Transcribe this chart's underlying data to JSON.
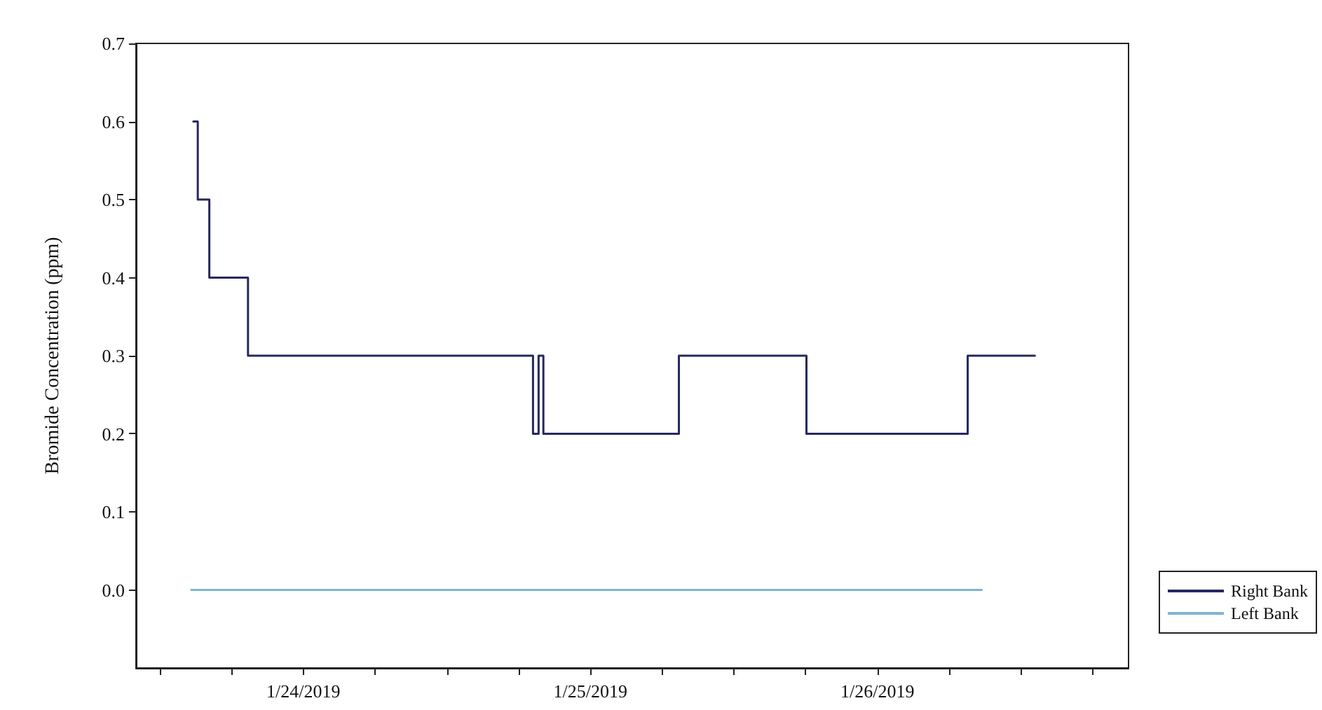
{
  "chart_data": {
    "type": "step",
    "ylabel": "Bromide Concentration (ppm)",
    "xlim": [
      "2019-01-23T10:00",
      "2019-01-26T21:00"
    ],
    "xticks": [
      {
        "value": "2019-01-23T12:00",
        "label": null
      },
      {
        "value": "2019-01-23T18:00",
        "label": null
      },
      {
        "value": "2019-01-24T00:00",
        "label": "1/24/2019"
      },
      {
        "value": "2019-01-24T06:00",
        "label": null
      },
      {
        "value": "2019-01-24T12:00",
        "label": null
      },
      {
        "value": "2019-01-24T18:00",
        "label": null
      },
      {
        "value": "2019-01-25T00:00",
        "label": "1/25/2019"
      },
      {
        "value": "2019-01-25T06:00",
        "label": null
      },
      {
        "value": "2019-01-25T12:00",
        "label": null
      },
      {
        "value": "2019-01-25T18:00",
        "label": null
      },
      {
        "value": "2019-01-26T00:00",
        "label": "1/26/2019"
      },
      {
        "value": "2019-01-26T06:00",
        "label": null
      },
      {
        "value": "2019-01-26T12:00",
        "label": null
      },
      {
        "value": "2019-01-26T18:00",
        "label": null
      }
    ],
    "ylim": [
      -0.1,
      0.7
    ],
    "yticks": [
      {
        "value": 0,
        "label": "0.0"
      },
      0.1,
      0.2,
      0.3,
      0.4,
      0.5,
      0.6,
      0.7
    ],
    "grid": false,
    "legend": "bottom right",
    "marker": "none",
    "line_style": "solid",
    "series": [
      {
        "name": "Right Bank",
        "color": "#27285e",
        "x": [
          "2019-01-23T14:48",
          "2019-01-23T15:10",
          "2019-01-23T16:08",
          "2019-01-23T19:22",
          "2019-01-24T19:12",
          "2019-01-24T19:40",
          "2019-01-24T20:04",
          "2019-01-25T07:24",
          "2019-01-25T18:04",
          "2019-01-26T07:33",
          "2019-01-26T13:10"
        ],
        "values": [
          0.6,
          0.5,
          0.4,
          0.3,
          0.2,
          0.3,
          0.2,
          0.3,
          0.2,
          0.3,
          0.3
        ]
      },
      {
        "name": "Left Bank",
        "color": "#7fb6d2",
        "type": "line",
        "x": [
          "2019-01-23T14:37",
          "2019-01-26T08:44"
        ],
        "values": [
          0,
          0
        ]
      }
    ]
  }
}
